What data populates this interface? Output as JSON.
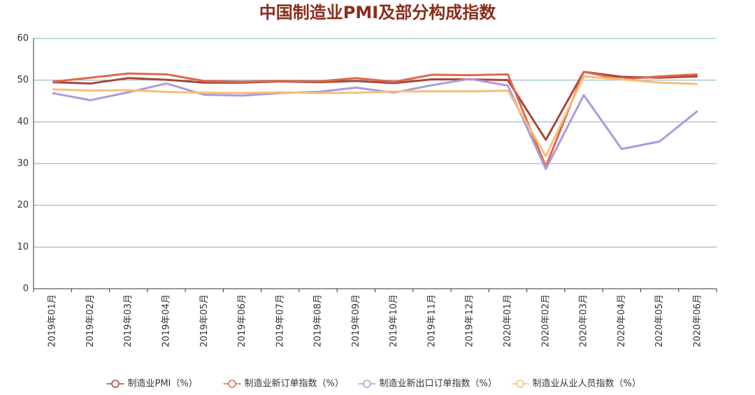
{
  "chart_data": {
    "type": "line",
    "title": "中国制造业PMI及部分构成指数",
    "categories": [
      "2019年01月",
      "2019年02月",
      "2019年03月",
      "2019年04月",
      "2019年05月",
      "2019年06月",
      "2019年07月",
      "2019年08月",
      "2019年09月",
      "2019年10月",
      "2019年11月",
      "2019年12月",
      "2020年01月",
      "2020年02月",
      "2020年03月",
      "2020年04月",
      "2020年05月",
      "2020年06月"
    ],
    "series": [
      {
        "name": "制造业PMI（%）",
        "color": "#a8473b",
        "values": [
          49.5,
          49.2,
          50.5,
          50.1,
          49.4,
          49.4,
          49.7,
          49.5,
          49.8,
          49.3,
          50.2,
          50.2,
          50.0,
          35.7,
          52.0,
          50.8,
          50.6,
          50.9
        ]
      },
      {
        "name": "制造业新订单指数（%）",
        "color": "#e0674c",
        "values": [
          49.6,
          50.6,
          51.6,
          51.4,
          49.8,
          49.6,
          49.8,
          49.7,
          50.5,
          49.6,
          51.3,
          51.2,
          51.4,
          29.3,
          52.0,
          50.2,
          50.9,
          51.4
        ]
      },
      {
        "name": "制造业新出口订单指数（%）",
        "color": "#ab9bdb",
        "values": [
          46.9,
          45.2,
          47.1,
          49.2,
          46.5,
          46.3,
          46.9,
          47.2,
          48.2,
          47.0,
          48.8,
          50.3,
          48.7,
          28.7,
          46.4,
          33.5,
          35.3,
          42.6
        ]
      },
      {
        "name": "制造业从业人员指数（%）",
        "color": "#f6bf78",
        "values": [
          47.8,
          47.5,
          47.6,
          47.2,
          47.0,
          46.9,
          47.1,
          46.9,
          47.0,
          47.3,
          47.3,
          47.3,
          47.5,
          31.8,
          50.9,
          50.2,
          49.4,
          49.1
        ]
      }
    ],
    "ylim": [
      0,
      60
    ],
    "yticks": [
      0,
      10,
      20,
      30,
      40,
      50,
      60
    ],
    "grid": true
  }
}
